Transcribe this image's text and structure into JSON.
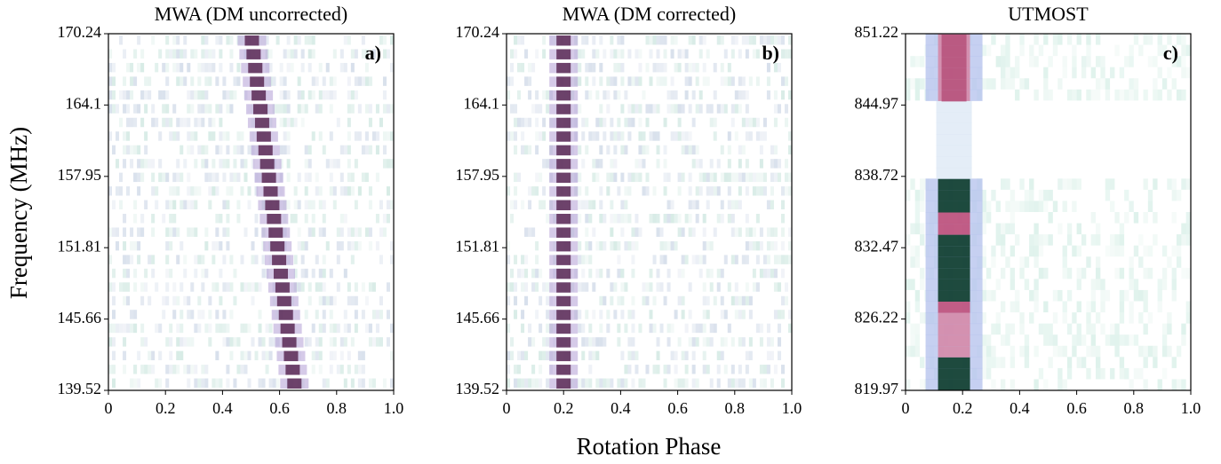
{
  "xlabel": "Rotation Phase",
  "ylabel": "Frequency (MHz)",
  "chart_data": [
    {
      "type": "heatmap",
      "title": "MWA (DM uncorrected)",
      "label": "a)",
      "pulse_phase": [
        0.655,
        0.5
      ],
      "xlim": [
        0,
        1
      ],
      "xticks": [
        0,
        0.2,
        0.4,
        0.6,
        0.8,
        {
          "value": 1,
          "label": "1.0"
        }
      ],
      "ylim": [
        139.52,
        170.24
      ],
      "yticks": [
        139.52,
        145.66,
        151.81,
        157.95,
        164.1,
        170.24
      ]
    },
    {
      "type": "heatmap",
      "title": "MWA (DM corrected)",
      "label": "b)",
      "pulse_phase": [
        0.2,
        0.2
      ],
      "xlim": [
        0,
        1
      ],
      "xticks": [
        0,
        0.2,
        0.4,
        0.6,
        0.8,
        {
          "value": 1,
          "label": "1.0"
        }
      ],
      "ylim": [
        139.52,
        170.24
      ],
      "yticks": [
        139.52,
        145.66,
        151.81,
        157.95,
        164.1,
        170.24
      ]
    },
    {
      "type": "heatmap",
      "title": "UTMOST",
      "label": "c)",
      "pulse_phase": [
        0.17,
        0.17
      ],
      "xlim": [
        0,
        1
      ],
      "xticks": [
        0,
        0.2,
        0.4,
        0.6,
        0.8,
        {
          "value": 1,
          "label": "1.0"
        }
      ],
      "ylim": [
        819.97,
        851.22
      ],
      "yticks": [
        819.97,
        826.22,
        832.47,
        838.72,
        844.97,
        851.22
      ]
    }
  ]
}
